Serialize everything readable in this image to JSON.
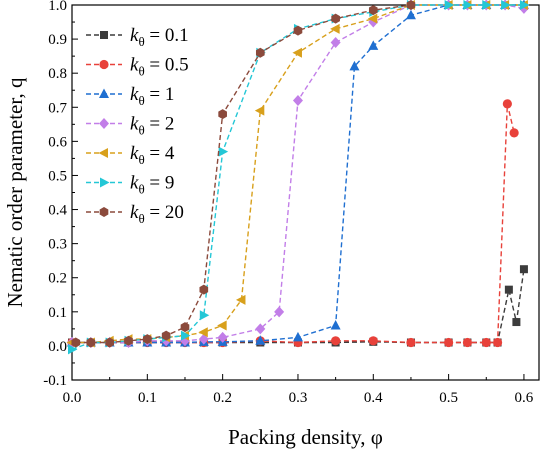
{
  "chart_data": {
    "type": "line",
    "xlabel": "Packing density, φ",
    "ylabel": "Nematic order parameter, q",
    "xlim": [
      0.0,
      0.62
    ],
    "ylim": [
      -0.1,
      1.0
    ],
    "xticks": [
      "0.0",
      "0.1",
      "0.2",
      "0.3",
      "0.4",
      "0.5",
      "0.6"
    ],
    "yticks": [
      "-0.1",
      "0.0",
      "0.1",
      "0.2",
      "0.3",
      "0.4",
      "0.5",
      "0.6",
      "0.7",
      "0.8",
      "0.9",
      "1.0"
    ],
    "grid": false,
    "legend_position": "top-left",
    "series": [
      {
        "label_var": "k",
        "label_sub": "θ",
        "label_value": " = 0.1",
        "color": "#3c3c3c",
        "marker": "square",
        "x": [
          0.0,
          0.025,
          0.05,
          0.075,
          0.1,
          0.125,
          0.15,
          0.175,
          0.2,
          0.25,
          0.3,
          0.35,
          0.4,
          0.45,
          0.5,
          0.525,
          0.55,
          0.565,
          0.58,
          0.59,
          0.6
        ],
        "y": [
          0.01,
          0.01,
          0.01,
          0.01,
          0.01,
          0.01,
          0.01,
          0.01,
          0.01,
          0.01,
          0.01,
          0.01,
          0.012,
          0.01,
          0.01,
          0.01,
          0.01,
          0.01,
          0.165,
          0.07,
          0.225
        ]
      },
      {
        "label_var": "k",
        "label_sub": "θ",
        "label_value": " = 0.5",
        "color": "#e8413a",
        "marker": "circle",
        "x": [
          0.0,
          0.025,
          0.05,
          0.075,
          0.1,
          0.125,
          0.15,
          0.175,
          0.2,
          0.25,
          0.3,
          0.35,
          0.4,
          0.45,
          0.5,
          0.525,
          0.55,
          0.565,
          0.578,
          0.587
        ],
        "y": [
          0.01,
          0.01,
          0.01,
          0.01,
          0.01,
          0.01,
          0.01,
          0.01,
          0.01,
          0.015,
          0.01,
          0.015,
          0.015,
          0.01,
          0.01,
          0.01,
          0.01,
          0.01,
          0.71,
          0.625
        ]
      },
      {
        "label_var": "k",
        "label_sub": "θ",
        "label_value": " = 1",
        "color": "#1f6fd1",
        "marker": "triangle-up",
        "x": [
          0.0,
          0.025,
          0.05,
          0.075,
          0.1,
          0.125,
          0.15,
          0.175,
          0.2,
          0.25,
          0.3,
          0.35,
          0.375,
          0.4,
          0.45,
          0.5,
          0.525,
          0.55,
          0.575,
          0.6
        ],
        "y": [
          0.01,
          0.01,
          0.01,
          0.01,
          0.01,
          0.01,
          0.01,
          0.012,
          0.012,
          0.015,
          0.025,
          0.06,
          0.82,
          0.88,
          0.97,
          1.0,
          1.0,
          1.0,
          1.0,
          1.0
        ]
      },
      {
        "label_var": "k",
        "label_sub": "θ",
        "label_value": " = 2",
        "color": "#c27ee8",
        "marker": "diamond",
        "x": [
          0.0,
          0.025,
          0.05,
          0.075,
          0.1,
          0.125,
          0.15,
          0.175,
          0.2,
          0.25,
          0.275,
          0.3,
          0.35,
          0.4,
          0.45,
          0.5,
          0.525,
          0.55,
          0.575,
          0.6
        ],
        "y": [
          0.01,
          0.01,
          0.01,
          0.01,
          0.015,
          0.015,
          0.015,
          0.02,
          0.025,
          0.05,
          0.1,
          0.72,
          0.89,
          0.95,
          1.0,
          1.0,
          1.0,
          1.0,
          1.0,
          0.99
        ]
      },
      {
        "label_var": "k",
        "label_sub": "θ",
        "label_value": " = 4",
        "color": "#d8a01c",
        "marker": "triangle-left",
        "x": [
          0.0,
          0.025,
          0.05,
          0.075,
          0.1,
          0.125,
          0.15,
          0.175,
          0.2,
          0.225,
          0.25,
          0.3,
          0.35,
          0.4,
          0.45,
          0.5,
          0.525,
          0.55,
          0.575,
          0.6
        ],
        "y": [
          0.01,
          0.01,
          0.015,
          0.02,
          0.02,
          0.025,
          0.03,
          0.04,
          0.06,
          0.135,
          0.69,
          0.86,
          0.93,
          0.96,
          1.0,
          1.0,
          1.0,
          1.0,
          1.0,
          1.0
        ]
      },
      {
        "label_var": "k",
        "label_sub": "θ",
        "label_value": " = 9",
        "color": "#24c7d6",
        "marker": "triangle-right",
        "x": [
          0.0,
          0.025,
          0.05,
          0.075,
          0.1,
          0.125,
          0.15,
          0.175,
          0.2,
          0.25,
          0.3,
          0.35,
          0.4,
          0.45,
          0.5,
          0.525,
          0.55,
          0.575,
          0.6
        ],
        "y": [
          -0.01,
          0.01,
          0.01,
          0.015,
          0.02,
          0.025,
          0.03,
          0.09,
          0.57,
          0.86,
          0.93,
          0.96,
          0.98,
          1.0,
          1.0,
          1.0,
          1.0,
          1.0,
          1.0
        ]
      },
      {
        "label_var": "k",
        "label_sub": "θ",
        "label_value": " = 20",
        "color": "#8b4a3c",
        "marker": "hexagon",
        "x": [
          0.005,
          0.025,
          0.05,
          0.075,
          0.1,
          0.125,
          0.15,
          0.175,
          0.2,
          0.25,
          0.3,
          0.35,
          0.4,
          0.45
        ],
        "y": [
          0.01,
          0.01,
          0.01,
          0.015,
          0.02,
          0.03,
          0.055,
          0.165,
          0.68,
          0.86,
          0.925,
          0.96,
          0.985,
          1.0
        ]
      }
    ]
  }
}
